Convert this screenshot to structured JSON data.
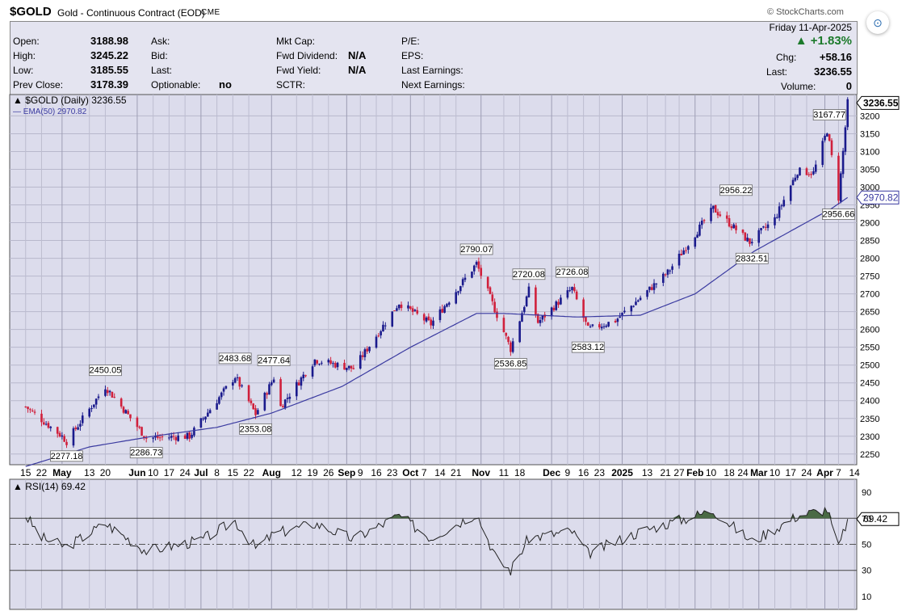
{
  "header": {
    "symbol": "$GOLD",
    "name": "Gold - Continuous Contract (EOD)",
    "exchange": "CME",
    "brand": "© StockCharts.com"
  },
  "quote": {
    "open_label": "Open:",
    "open": "3188.98",
    "high_label": "High:",
    "high": "3245.22",
    "low_label": "Low:",
    "low": "3185.55",
    "prev_label": "Prev Close:",
    "prev": "3178.39",
    "ask_label": "Ask:",
    "bid_label": "Bid:",
    "last_label2": "Last:",
    "optionable_label": "Optionable:",
    "optionable": "no",
    "mktcap_label": "Mkt Cap:",
    "fwddiv_label": "Fwd Dividend:",
    "fwddiv": "N/A",
    "fwdyield_label": "Fwd Yield:",
    "fwdyield": "N/A",
    "sctr_label": "SCTR:",
    "pe_label": "P/E:",
    "eps_label": "EPS:",
    "lastearn_label": "Last Earnings:",
    "nextearn_label": "Next Earnings:",
    "date": "Friday  11-Apr-2025",
    "chg_pct": "▲ +1.83%",
    "chg_label": "Chg:",
    "chg": "+58.16",
    "last_label": "Last:",
    "last": "3236.55",
    "volume_label": "Volume:",
    "volume": "0"
  },
  "chart_data": [
    {
      "type": "candlestick",
      "legend": [
        "$GOLD (Daily) 3236.55",
        "EMA(50) 2970.82"
      ],
      "ylim": [
        2220,
        3260
      ],
      "yticks": [
        2250,
        2300,
        2350,
        2400,
        2450,
        2500,
        2550,
        2600,
        2650,
        2700,
        2750,
        2800,
        2850,
        2900,
        2950,
        3000,
        3050,
        3100,
        3150,
        3200
      ],
      "last_value_label": "3236.55",
      "ema_value_label": "2970.82",
      "x_labels": [
        "15",
        "22",
        "May",
        "13",
        "20",
        "Jun",
        "10",
        "17",
        "24",
        "Jul",
        "8",
        "15",
        "22",
        "Aug",
        "12",
        "19",
        "26",
        "Sep",
        "9",
        "16",
        "23",
        "Oct",
        "7",
        "14",
        "21",
        "Nov",
        "11",
        "18",
        "Dec",
        "9",
        "16",
        "23",
        "2025",
        "13",
        "21",
        "27",
        "Feb",
        "10",
        "18",
        "24",
        "Mar",
        "10",
        "17",
        "24",
        "Apr",
        "7",
        "14"
      ],
      "anchors": [
        {
          "x": "Apr 15 2024",
          "y": 2383
        },
        {
          "x": "May 01 2024",
          "y": 2300
        },
        {
          "x": "May 03 2024",
          "y": 2285
        },
        {
          "x": "May 20 2024",
          "y": 2440
        },
        {
          "x": "Jun 07 2024",
          "y": 2295
        },
        {
          "x": "Jun 26 2024",
          "y": 2300
        },
        {
          "x": "Jul 16 2024",
          "y": 2468
        },
        {
          "x": "Jul 25 2024",
          "y": 2362
        },
        {
          "x": "Aug 02 2024",
          "y": 2465
        },
        {
          "x": "Aug 05 2024",
          "y": 2383
        },
        {
          "x": "Aug 20 2024",
          "y": 2515
        },
        {
          "x": "Sep 06 2024",
          "y": 2490
        },
        {
          "x": "Sep 26 2024",
          "y": 2675
        },
        {
          "x": "Oct 10 2024",
          "y": 2615
        },
        {
          "x": "Oct 30 2024",
          "y": 2785
        },
        {
          "x": "Nov 14 2024",
          "y": 2545
        },
        {
          "x": "Nov 22 2024",
          "y": 2710
        },
        {
          "x": "Nov 26 2024",
          "y": 2620
        },
        {
          "x": "Dec 11 2024",
          "y": 2715
        },
        {
          "x": "Dec 18 2024",
          "y": 2600
        },
        {
          "x": "Dec 30 2024",
          "y": 2625
        },
        {
          "x": "Jan 22 2025",
          "y": 2760
        },
        {
          "x": "Feb 11 2025",
          "y": 2940
        },
        {
          "x": "Feb 27 2025",
          "y": 2845
        },
        {
          "x": "Mar 10 2025",
          "y": 2910
        },
        {
          "x": "Mar 20 2025",
          "y": 3045
        },
        {
          "x": "Mar 27 2025",
          "y": 3040
        },
        {
          "x": "Apr 02 2025",
          "y": 3160
        },
        {
          "x": "Apr 07 2025",
          "y": 2970
        },
        {
          "x": "Apr 09 2025",
          "y": 3100
        },
        {
          "x": "Apr 11 2025",
          "y": 3236.55
        }
      ],
      "ema_anchors": [
        {
          "x": "Apr 15 2024",
          "y": 2215
        },
        {
          "x": "May 13 2024",
          "y": 2270
        },
        {
          "x": "Jun 10 2024",
          "y": 2300
        },
        {
          "x": "Jul 08 2024",
          "y": 2325
        },
        {
          "x": "Aug 01 2024",
          "y": 2365
        },
        {
          "x": "Sep 01 2024",
          "y": 2440
        },
        {
          "x": "Oct 01 2024",
          "y": 2550
        },
        {
          "x": "Oct 30 2024",
          "y": 2645
        },
        {
          "x": "Nov 11 2024",
          "y": 2645
        },
        {
          "x": "Dec 13 2024",
          "y": 2635
        },
        {
          "x": "Jan 10 2025",
          "y": 2640
        },
        {
          "x": "Feb 03 2025",
          "y": 2700
        },
        {
          "x": "Mar 01 2025",
          "y": 2820
        },
        {
          "x": "Apr 04 2025",
          "y": 2940
        },
        {
          "x": "Apr 11 2025",
          "y": 2970.82
        }
      ],
      "annotations": [
        {
          "x": "May 03 2024",
          "y": 2277.18,
          "text": "2277.18",
          "pos": "below"
        },
        {
          "x": "May 20 2024",
          "y": 2450.05,
          "text": "2450.05",
          "pos": "above"
        },
        {
          "x": "Jun 07 2024",
          "y": 2286.73,
          "text": "2286.73",
          "pos": "below"
        },
        {
          "x": "Jul 16 2024",
          "y": 2483.68,
          "text": "2483.68",
          "pos": "above"
        },
        {
          "x": "Jul 25 2024",
          "y": 2353.08,
          "text": "2353.08",
          "pos": "below"
        },
        {
          "x": "Aug 02 2024",
          "y": 2477.64,
          "text": "2477.64",
          "pos": "above"
        },
        {
          "x": "Oct 30 2024",
          "y": 2790.07,
          "text": "2790.07",
          "pos": "above"
        },
        {
          "x": "Nov 14 2024",
          "y": 2536.85,
          "text": "2536.85",
          "pos": "below"
        },
        {
          "x": "Nov 22 2024",
          "y": 2720.08,
          "text": "2720.08",
          "pos": "above"
        },
        {
          "x": "Dec 11 2024",
          "y": 2726.08,
          "text": "2726.08",
          "pos": "above"
        },
        {
          "x": "Dec 18 2024",
          "y": 2583.12,
          "text": "2583.12",
          "pos": "below"
        },
        {
          "x": "Feb 21 2025",
          "y": 2956.22,
          "text": "2956.22",
          "pos": "above"
        },
        {
          "x": "Feb 28 2025",
          "y": 2832.51,
          "text": "2832.51",
          "pos": "below"
        },
        {
          "x": "Apr 03 2025",
          "y": 3167.77,
          "text": "3167.77",
          "pos": "above"
        },
        {
          "x": "Apr 07 2025",
          "y": 2956.66,
          "text": "2956.66",
          "pos": "below"
        }
      ],
      "colors": {
        "up": "#1a1a8c",
        "down": "#d0203c",
        "ema": "#3a3aa0",
        "bg": "#dcdcec"
      }
    },
    {
      "type": "line",
      "legend": "RSI(14) 69.42",
      "ylim": [
        0,
        100
      ],
      "yticks": [
        10,
        30,
        50,
        70,
        90
      ],
      "last_value_label": "69.42",
      "anchors": [
        {
          "x": "Apr 15 2024",
          "y": 72
        },
        {
          "x": "Apr 22 2024",
          "y": 55
        },
        {
          "x": "May 03 2024",
          "y": 48
        },
        {
          "x": "May 20 2024",
          "y": 66
        },
        {
          "x": "Jun 07 2024",
          "y": 45
        },
        {
          "x": "Jul 01 2024",
          "y": 53
        },
        {
          "x": "Jul 16 2024",
          "y": 68
        },
        {
          "x": "Jul 25 2024",
          "y": 47
        },
        {
          "x": "Aug 02 2024",
          "y": 58
        },
        {
          "x": "Aug 20 2024",
          "y": 66
        },
        {
          "x": "Sep 06 2024",
          "y": 54
        },
        {
          "x": "Sep 26 2024",
          "y": 72
        },
        {
          "x": "Oct 10 2024",
          "y": 55
        },
        {
          "x": "Oct 30 2024",
          "y": 74
        },
        {
          "x": "Nov 08 2024",
          "y": 38
        },
        {
          "x": "Nov 14 2024",
          "y": 30
        },
        {
          "x": "Nov 22 2024",
          "y": 55
        },
        {
          "x": "Dec 11 2024",
          "y": 60
        },
        {
          "x": "Dec 18 2024",
          "y": 43
        },
        {
          "x": "Jan 10 2025",
          "y": 60
        },
        {
          "x": "Feb 11 2025",
          "y": 76
        },
        {
          "x": "Feb 28 2025",
          "y": 52
        },
        {
          "x": "Mar 20 2025",
          "y": 72
        },
        {
          "x": "Apr 02 2025",
          "y": 77
        },
        {
          "x": "Apr 07 2025",
          "y": 47
        },
        {
          "x": "Apr 11 2025",
          "y": 69.42
        }
      ],
      "colors": {
        "line": "#222222",
        "fill": "#4a6a45",
        "bg": "#dcdcec"
      }
    }
  ]
}
